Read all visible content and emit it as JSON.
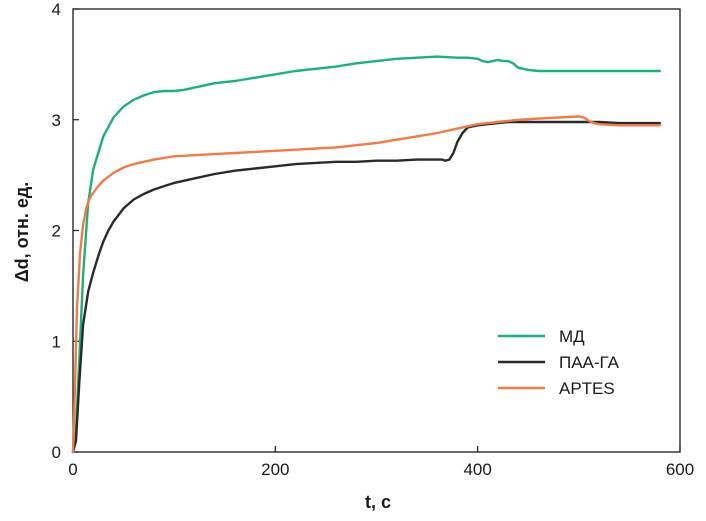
{
  "chart_data": {
    "type": "line",
    "xlabel": "t, c",
    "ylabel": "Δd, отн. ед.",
    "xlim": [
      0,
      600
    ],
    "ylim": [
      0,
      4
    ],
    "xticks": [
      0,
      200,
      400,
      600
    ],
    "yticks": [
      0,
      1,
      2,
      3,
      4
    ],
    "grid": false,
    "legend_position": "lower-right",
    "series": [
      {
        "name": "МД",
        "color": "#1fb07a",
        "x": [
          0,
          3,
          6,
          10,
          15,
          20,
          30,
          40,
          50,
          60,
          70,
          80,
          90,
          100,
          110,
          120,
          130,
          140,
          160,
          180,
          200,
          220,
          240,
          260,
          280,
          300,
          320,
          340,
          360,
          380,
          390,
          400,
          405,
          410,
          415,
          420,
          425,
          430,
          435,
          440,
          450,
          460,
          480,
          500,
          520,
          540,
          560,
          580
        ],
        "y": [
          0,
          0.2,
          0.8,
          1.6,
          2.25,
          2.55,
          2.85,
          3.02,
          3.12,
          3.18,
          3.22,
          3.25,
          3.26,
          3.26,
          3.27,
          3.29,
          3.31,
          3.33,
          3.35,
          3.38,
          3.41,
          3.44,
          3.46,
          3.48,
          3.51,
          3.53,
          3.55,
          3.56,
          3.57,
          3.56,
          3.56,
          3.55,
          3.53,
          3.52,
          3.53,
          3.54,
          3.53,
          3.53,
          3.51,
          3.47,
          3.45,
          3.44,
          3.44,
          3.44,
          3.44,
          3.44,
          3.44,
          3.44
        ]
      },
      {
        "name": "ПАА-ГА",
        "color": "#2a2a2a",
        "x": [
          0,
          3,
          6,
          10,
          15,
          20,
          25,
          30,
          35,
          40,
          50,
          60,
          70,
          80,
          100,
          120,
          140,
          160,
          180,
          200,
          220,
          240,
          260,
          280,
          300,
          320,
          340,
          360,
          365,
          368,
          372,
          376,
          380,
          385,
          390,
          400,
          410,
          420,
          430,
          440,
          460,
          480,
          500,
          520,
          540,
          560,
          580
        ],
        "y": [
          0,
          0.1,
          0.6,
          1.15,
          1.45,
          1.62,
          1.77,
          1.9,
          2.0,
          2.08,
          2.2,
          2.28,
          2.33,
          2.37,
          2.43,
          2.47,
          2.51,
          2.54,
          2.56,
          2.58,
          2.6,
          2.61,
          2.62,
          2.62,
          2.63,
          2.63,
          2.64,
          2.64,
          2.64,
          2.63,
          2.64,
          2.7,
          2.8,
          2.88,
          2.93,
          2.95,
          2.96,
          2.97,
          2.98,
          2.98,
          2.98,
          2.98,
          2.98,
          2.98,
          2.97,
          2.97,
          2.97
        ]
      },
      {
        "name": "APTES",
        "color": "#ee7c4a",
        "x": [
          0,
          2,
          4,
          7,
          10,
          13,
          16,
          20,
          25,
          30,
          40,
          50,
          60,
          70,
          80,
          100,
          120,
          140,
          160,
          180,
          200,
          220,
          240,
          260,
          280,
          300,
          320,
          340,
          360,
          380,
          400,
          420,
          440,
          460,
          480,
          500,
          505,
          510,
          515,
          520,
          540,
          560,
          580
        ],
        "y": [
          0,
          0.6,
          1.3,
          1.8,
          2.05,
          2.2,
          2.28,
          2.34,
          2.4,
          2.45,
          2.52,
          2.57,
          2.6,
          2.62,
          2.64,
          2.67,
          2.68,
          2.69,
          2.7,
          2.71,
          2.72,
          2.73,
          2.74,
          2.75,
          2.77,
          2.79,
          2.82,
          2.85,
          2.88,
          2.92,
          2.96,
          2.98,
          3.0,
          3.01,
          3.02,
          3.03,
          3.02,
          2.99,
          2.97,
          2.96,
          2.95,
          2.95,
          2.95
        ]
      }
    ]
  }
}
